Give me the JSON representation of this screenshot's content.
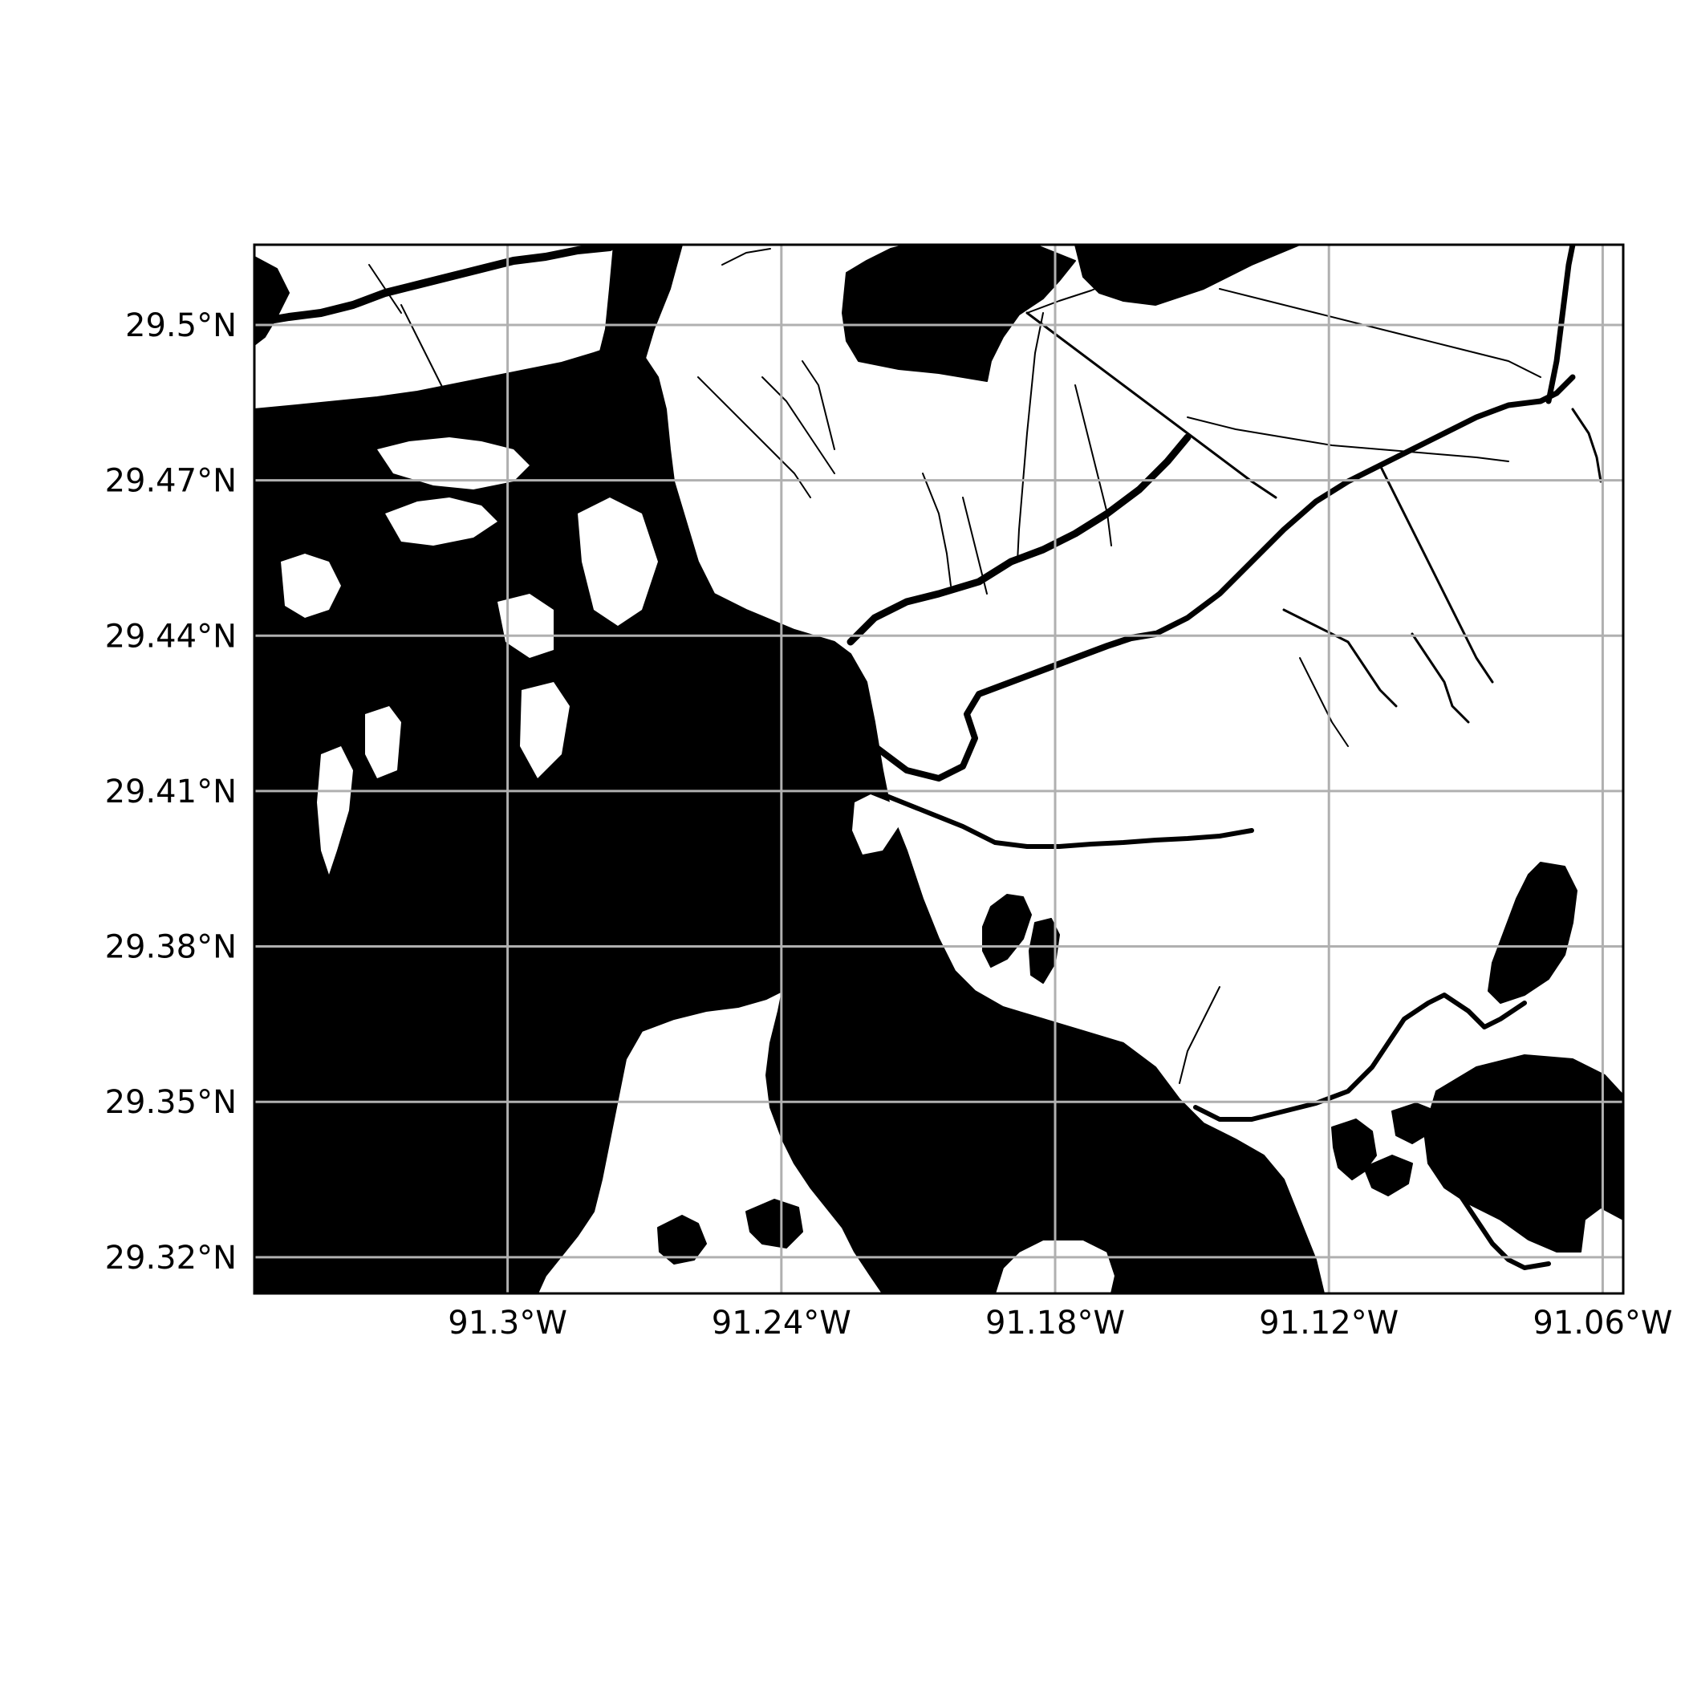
{
  "map": {
    "type": "map",
    "style": "black water bodies on white land, grey graticule",
    "grid": true,
    "colors": {
      "water": "#000000",
      "land": "#ffffff",
      "grid": "#b0b0b0",
      "frame": "#000000"
    },
    "lon_range": [
      -91.3555,
      -91.0555
    ],
    "lat_range": [
      29.313,
      29.5155
    ],
    "lon_ticks": [
      {
        "value": -91.3,
        "label": "91.3°W"
      },
      {
        "value": -91.24,
        "label": "91.24°W"
      },
      {
        "value": -91.18,
        "label": "91.18°W"
      },
      {
        "value": -91.12,
        "label": "91.12°W"
      },
      {
        "value": -91.06,
        "label": "91.06°W"
      }
    ],
    "lat_ticks": [
      {
        "value": 29.5,
        "label": "29.5°N"
      },
      {
        "value": 29.47,
        "label": "29.47°N"
      },
      {
        "value": 29.44,
        "label": "29.44°N"
      },
      {
        "value": 29.41,
        "label": "29.41°N"
      },
      {
        "value": 29.38,
        "label": "29.38°N"
      },
      {
        "value": 29.35,
        "label": "29.35°N"
      },
      {
        "value": 29.32,
        "label": "29.32°N"
      }
    ]
  }
}
